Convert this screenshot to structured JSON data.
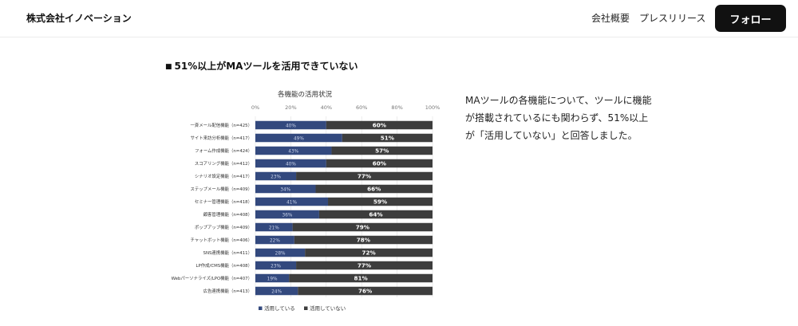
{
  "header": {
    "logo": "株式会社イノベーション",
    "nav": [
      "会社概要",
      "プレスリリース"
    ],
    "follow_label": "フォロー"
  },
  "section": {
    "bullet": "■",
    "heading": "51%以上がMAツールを活用できていない"
  },
  "description": "MAツールの各機能について、ツールに機能が搭載されているにも関わらず、51%以上が「活用していない」と回答しました。",
  "colors": {
    "using": "#33497e",
    "not_using": "#3d3d3d",
    "follow_button": "#111111"
  },
  "chart_data": {
    "type": "bar",
    "orientation": "horizontal",
    "stacked": true,
    "title": "各機能の活用状況",
    "xlim": [
      0,
      100
    ],
    "x_ticks": [
      "0%",
      "20%",
      "40%",
      "60%",
      "80%",
      "100%"
    ],
    "grid": true,
    "legend_position": "bottom",
    "categories": [
      "一斉メール配信機能（n=425）",
      "サイト来訪分析機能（n=417）",
      "フォーム作成機能（n=424）",
      "スコアリング機能（n=412）",
      "シナリオ設定機能（n=417）",
      "ステップメール機能（n=409）",
      "セミナー管理機能（n=418）",
      "顧客管理機能（n=408）",
      "ポップアップ機能（n=409）",
      "チャットボット機能（n=406）",
      "SNS連携機能（n=411）",
      "LP作成/CMS機能（n=408）",
      "Webパーソナライズ/LPO機能（n=407）",
      "広告連携機能（n=413）"
    ],
    "series": [
      {
        "name": "活用している",
        "values": [
          40,
          49,
          43,
          40,
          23,
          34,
          41,
          36,
          21,
          22,
          28,
          23,
          19,
          24
        ],
        "labels": [
          "40%",
          "49%",
          "43%",
          "40%",
          "23%",
          "34%",
          "41%",
          "36%",
          "21%",
          "22%",
          "28%",
          "23%",
          "19%",
          "24%"
        ]
      },
      {
        "name": "活用していない",
        "values": [
          60,
          51,
          57,
          60,
          77,
          66,
          59,
          64,
          79,
          78,
          72,
          77,
          81,
          76
        ],
        "labels": [
          "60%",
          "51%",
          "57%",
          "60%",
          "77%",
          "66%",
          "59%",
          "64%",
          "79%",
          "78%",
          "72%",
          "77%",
          "81%",
          "76%"
        ]
      }
    ]
  }
}
